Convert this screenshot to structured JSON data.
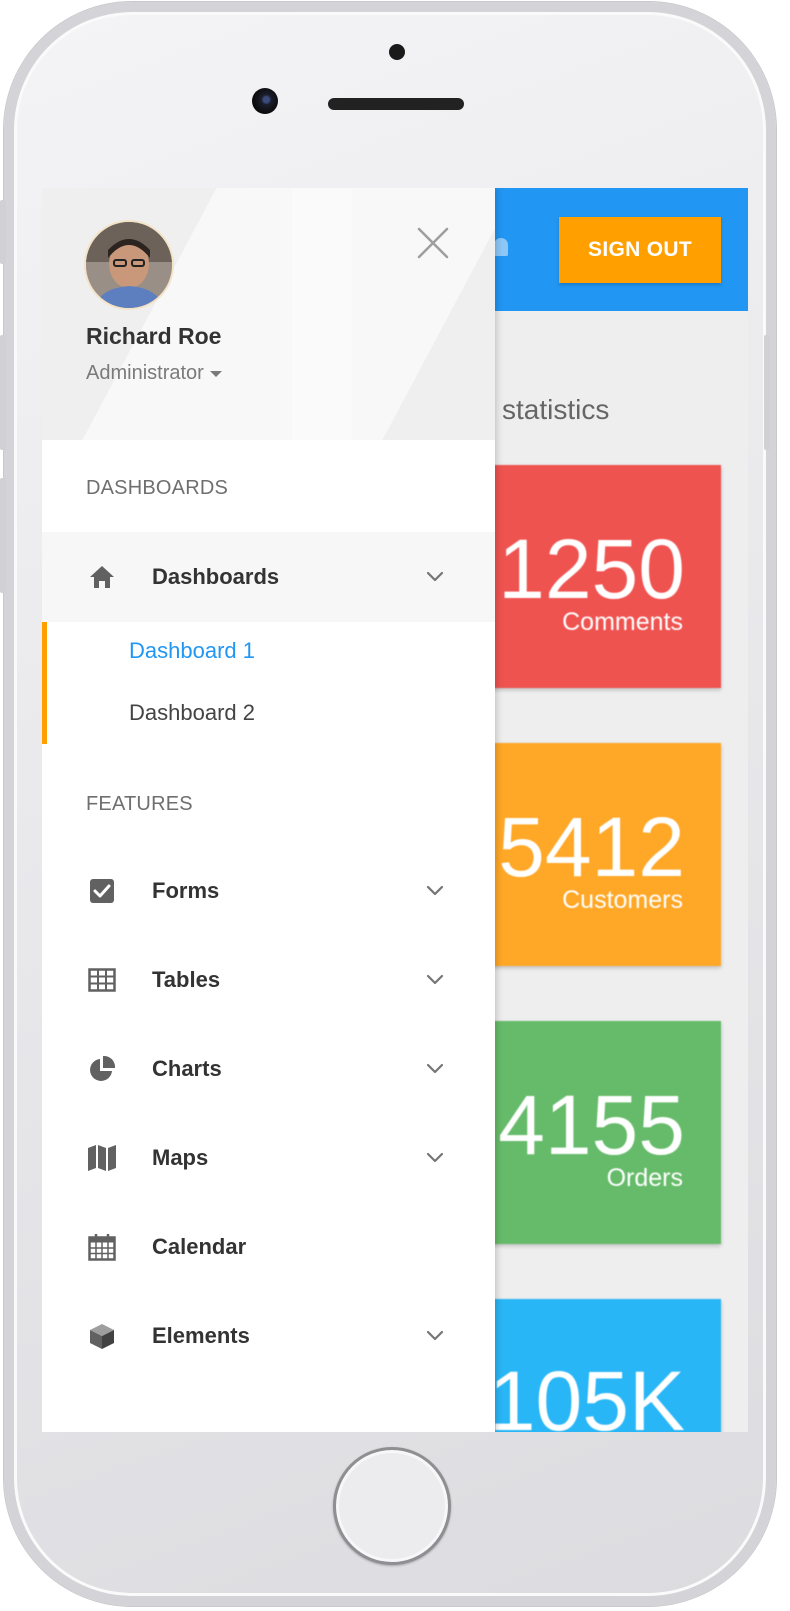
{
  "topbar": {
    "sign_out_label": "SIGN OUT"
  },
  "dashboard": {
    "heading": "statistics",
    "cards": [
      {
        "value": "1250",
        "label": "Comments",
        "color": "#ef5350"
      },
      {
        "value": "5412",
        "label": "Customers",
        "color": "#ffa726"
      },
      {
        "value": "4155",
        "label": "Orders",
        "color": "#66bb6a"
      },
      {
        "value": "105K",
        "label": "",
        "color": "#29b6f6"
      }
    ]
  },
  "drawer": {
    "user": {
      "name": "Richard Roe",
      "role": "Administrator"
    },
    "close_icon": "close-icon",
    "sections": [
      {
        "title": "DASHBOARDS"
      },
      {
        "title": "FEATURES"
      }
    ],
    "dashboards_item": {
      "label": "Dashboards",
      "icon": "home-icon",
      "subitems": [
        "Dashboard 1",
        "Dashboard 2"
      ],
      "selected_subitem": "Dashboard 1"
    },
    "features_items": [
      {
        "label": "Forms",
        "icon": "checkbox-icon",
        "has_children": true
      },
      {
        "label": "Tables",
        "icon": "table-icon",
        "has_children": true
      },
      {
        "label": "Charts",
        "icon": "pie-chart-icon",
        "has_children": true
      },
      {
        "label": "Maps",
        "icon": "map-icon",
        "has_children": true
      },
      {
        "label": "Calendar",
        "icon": "calendar-icon",
        "has_children": false
      },
      {
        "label": "Elements",
        "icon": "cube-icon",
        "has_children": true
      }
    ]
  },
  "colors": {
    "primary": "#2196f3",
    "accent": "#ffa000"
  }
}
